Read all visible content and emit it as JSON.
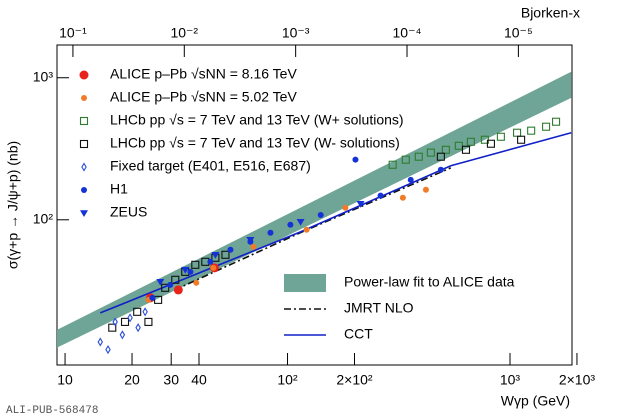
{
  "chart_data": {
    "type": "scatter",
    "x_label": "Wγp (GeV)",
    "y_label": "σ(γ+p → J/ψ+p) (nb)",
    "x2_label": "Bjorken-x",
    "xscale": "log",
    "yscale": "log",
    "x2scale": "log",
    "xlim": [
      9.2,
      1900
    ],
    "ylim": [
      9.5,
      1700
    ],
    "x2lim": [
      0.139,
      3.3e-06
    ],
    "xticks": [
      10,
      20,
      30,
      40,
      {
        "value": 100,
        "label": "10²"
      },
      {
        "value": 200,
        "label": "2×10²"
      },
      {
        "value": 1000,
        "label": "10³"
      },
      {
        "value": 2000,
        "label": "2×10³"
      }
    ],
    "yticks": [
      {
        "value": 100,
        "label": "10²"
      },
      {
        "value": 1000,
        "label": "10³"
      }
    ],
    "x2ticks": [
      {
        "value": 0.1,
        "label": "10⁻¹"
      },
      {
        "value": 0.01,
        "label": "10⁻²"
      },
      {
        "value": 0.001,
        "label": "10⁻³"
      },
      {
        "value": 0.0001,
        "label": "10⁻⁴"
      },
      {
        "value": 1e-05,
        "label": "10⁻⁵"
      }
    ],
    "series": [
      {
        "name": "Power-law fit to ALICE data",
        "kind": "band",
        "legend": "lower-right",
        "color": "#6fa596",
        "x": [
          9.2,
          1884
        ],
        "lower": [
          12.6,
          722
        ],
        "upper": [
          16.8,
          1101
        ]
      },
      {
        "name": "JMRT NLO",
        "kind": "line",
        "legend": "lower-right",
        "color": "#111111",
        "dash": "7,3,2,3",
        "x": [
          31,
          114,
          542
        ],
        "values": [
          32,
          81,
          232
        ]
      },
      {
        "name": "CCT",
        "kind": "line",
        "legend": "lower-right",
        "color": "#1020c8",
        "x": [
          14.4,
          114,
          542,
          1884
        ],
        "values": [
          22.1,
          82,
          240,
          410
        ]
      },
      {
        "name": "ALICE p–Pb √sNN = 8.16 TeV",
        "kind": "scatter",
        "legend": "upper-left",
        "marker": "circle",
        "size": 4.5,
        "color": "#e8231b",
        "x": [
          24.2,
          32.3,
          46.9
        ],
        "values": [
          28.2,
          32.1,
          45.9
        ]
      },
      {
        "name": "ALICE p–Pb √sNN = 5.02 TeV",
        "kind": "scatter",
        "legend": "upper-left",
        "marker": "circle",
        "size": 3,
        "color": "#f07b28",
        "x": [
          23.7,
          38.9,
          46.4,
          70.3,
          121.8,
          182,
          330,
          419
        ],
        "values": [
          27.3,
          36.0,
          45.9,
          64.5,
          85.1,
          121.6,
          142.9,
          162.6
        ]
      },
      {
        "name": "LHCb pp √s = 7 TeV and 13 TeV (W+ solutions)",
        "kind": "scatter",
        "legend": "upper-left",
        "marker": "square-open",
        "size": 3.5,
        "color": "#2e7d2e",
        "x": [
          297,
          340,
          389,
          441,
          515,
          589,
          667,
          771,
          910,
          1076,
          1245,
          1453,
          1611
        ],
        "values": [
          244,
          265,
          278,
          297,
          311,
          332,
          354,
          366,
          384,
          410,
          424,
          452,
          490
        ]
      },
      {
        "name": "LHCb pp √s = 7 TeV and 13 TeV (W- solutions)",
        "kind": "scatter",
        "legend": "upper-left",
        "marker": "square-open",
        "size": 3.5,
        "color": "#111111",
        "x": [
          16.3,
          18.6,
          21.1,
          23.7,
          26.2,
          28.2,
          31.3,
          34.7,
          38.5,
          42.7,
          47.4,
          52.6,
          489,
          634,
          821,
          1122
        ],
        "values": [
          17.4,
          19.1,
          22.5,
          19.1,
          27.3,
          33.2,
          37.8,
          43.0,
          48.2,
          50.6,
          54.0,
          56.7,
          278,
          311,
          343,
          366
        ]
      },
      {
        "name": "Fixed target (E401, E516, E687)",
        "kind": "scatter",
        "legend": "upper-left",
        "marker": "diamond-open",
        "size": 3.5,
        "color": "#2a4fd8",
        "x": [
          14.4,
          15.6,
          16.8,
          18.1,
          19.6,
          21.3,
          22.9
        ],
        "values": [
          13.8,
          12.2,
          19.1,
          15.5,
          20.4,
          17.4,
          22.5
        ]
      },
      {
        "name": "H1",
        "kind": "scatter",
        "legend": "upper-left",
        "marker": "circle",
        "size": 3,
        "color": "#1432d8",
        "x": [
          24.7,
          29.7,
          36.6,
          45.0,
          55.4,
          68.1,
          83.8,
          103,
          141,
          202,
          262,
          358,
          489
        ],
        "values": [
          28.2,
          34.8,
          43.0,
          50.6,
          61.5,
          70.0,
          81.0,
          92.2,
          108,
          265,
          148,
          191,
          225
        ]
      },
      {
        "name": "ZEUS",
        "kind": "scatter",
        "legend": "upper-left",
        "marker": "triangle-down",
        "size": 4,
        "color": "#1432d8",
        "x": [
          26.8,
          34.7,
          47.4,
          68.1,
          114.5,
          213
        ],
        "values": [
          36.6,
          44.5,
          56.7,
          72.3,
          96.8,
          129.6
        ]
      }
    ]
  },
  "footer": "ALI-PUB-568478"
}
